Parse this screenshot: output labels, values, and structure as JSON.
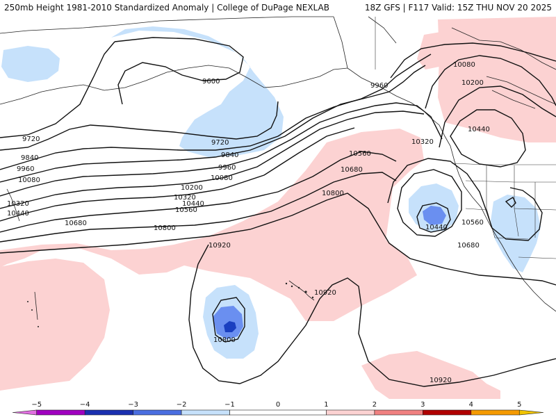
{
  "header": {
    "title_left": "250mb Height 1981-2010 Standardized Anomaly | College of DuPage NEXLAB",
    "title_right": "18Z GFS | F117 Valid: 15Z THU NOV 20 2025"
  },
  "contour_labels": [
    {
      "id": "9600-a",
      "text": "9600"
    },
    {
      "id": "9720-a",
      "text": "9720"
    },
    {
      "id": "9720-b",
      "text": "9720"
    },
    {
      "id": "9840-a",
      "text": "9840"
    },
    {
      "id": "9840-b",
      "text": "9840"
    },
    {
      "id": "9960-a",
      "text": "9960"
    },
    {
      "id": "9960-b",
      "text": "9960"
    },
    {
      "id": "9960-c",
      "text": "9960"
    },
    {
      "id": "10080-a",
      "text": "10080"
    },
    {
      "id": "10080-b",
      "text": "10080"
    },
    {
      "id": "10080-c",
      "text": "10080"
    },
    {
      "id": "10200-a",
      "text": "10200"
    },
    {
      "id": "10200-b",
      "text": "10200"
    },
    {
      "id": "10320-a",
      "text": "10320"
    },
    {
      "id": "10320-b",
      "text": "10320"
    },
    {
      "id": "10320-c",
      "text": "10320"
    },
    {
      "id": "10440-a",
      "text": "10440"
    },
    {
      "id": "10440-b",
      "text": "10440"
    },
    {
      "id": "10440-c",
      "text": "10440"
    },
    {
      "id": "10440-d",
      "text": "10440"
    },
    {
      "id": "10560-a",
      "text": "10560"
    },
    {
      "id": "10560-b",
      "text": "10560"
    },
    {
      "id": "10560-c",
      "text": "10560"
    },
    {
      "id": "10680-a",
      "text": "10680"
    },
    {
      "id": "10680-b",
      "text": "10680"
    },
    {
      "id": "10680-c",
      "text": "10680"
    },
    {
      "id": "10800-a",
      "text": "10800"
    },
    {
      "id": "10800-b",
      "text": "10800"
    },
    {
      "id": "10800-c",
      "text": "10800"
    },
    {
      "id": "10920-a",
      "text": "10920"
    },
    {
      "id": "10920-b",
      "text": "10920"
    },
    {
      "id": "10920-c",
      "text": "10920"
    }
  ],
  "colorbar": {
    "min": -5.5,
    "max": 5.5,
    "ticks": [
      {
        "value": -5,
        "label": "−5"
      },
      {
        "value": -4,
        "label": "−4"
      },
      {
        "value": -3,
        "label": "−3"
      },
      {
        "value": -2,
        "label": "−2"
      },
      {
        "value": -1,
        "label": "−1"
      },
      {
        "value": 0,
        "label": "0"
      },
      {
        "value": 1,
        "label": "1"
      },
      {
        "value": 2,
        "label": "2"
      },
      {
        "value": 3,
        "label": "3"
      },
      {
        "value": 4,
        "label": "4"
      },
      {
        "value": 5,
        "label": "5"
      }
    ],
    "bins": [
      {
        "from": -5.5,
        "to": -5,
        "color": "#e070e0"
      },
      {
        "from": -5,
        "to": -4,
        "color": "#a000c0"
      },
      {
        "from": -4,
        "to": -3,
        "color": "#1a2fb0"
      },
      {
        "from": -3,
        "to": -2,
        "color": "#4a6ee0"
      },
      {
        "from": -2,
        "to": -1,
        "color": "#c6e1fb"
      },
      {
        "from": -1,
        "to": 1,
        "color": "#ffffff"
      },
      {
        "from": 1,
        "to": 2,
        "color": "#fcd2d2"
      },
      {
        "from": 2,
        "to": 3,
        "color": "#f08080"
      },
      {
        "from": 3,
        "to": 4,
        "color": "#b00000"
      },
      {
        "from": 4,
        "to": 5,
        "color": "#f59a00"
      },
      {
        "from": 5,
        "to": 5.5,
        "color": "#f0c300"
      }
    ]
  },
  "colors": {
    "neg1": "#c6e1fb",
    "neg2": "#6a8ff0",
    "neg3": "#1a3fc0",
    "pos1": "#fcd2d2",
    "contour": "#111111",
    "coast": "#222222"
  }
}
